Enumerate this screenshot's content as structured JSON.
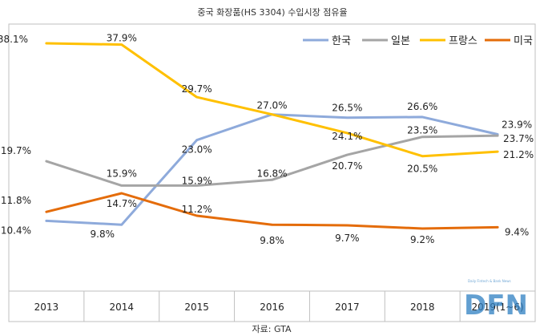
{
  "chart_data": {
    "type": "line",
    "title": "중국 화장품(HS 3304) 수입시장 점유율",
    "categories": [
      "2013",
      "2014",
      "2015",
      "2016",
      "2017",
      "2018",
      "2019(1~6)"
    ],
    "series": [
      {
        "name": "한국",
        "color": "#8eaadb",
        "values": [
          10.4,
          9.8,
          23.0,
          27.0,
          26.5,
          26.6,
          23.9
        ],
        "labels": [
          "10.4%",
          "9.8%",
          "23.0%",
          "27.0%",
          "26.5%",
          "26.6%",
          "23.9%"
        ]
      },
      {
        "name": "일본",
        "color": "#a5a5a5",
        "values": [
          19.7,
          15.9,
          15.9,
          16.8,
          20.7,
          23.5,
          23.7
        ],
        "labels": [
          "19.7%",
          "15.9%",
          "15.9%",
          "16.8%",
          "20.7%",
          "23.5%",
          "23.7%"
        ]
      },
      {
        "name": "프랑스",
        "color": "#ffc000",
        "values": [
          38.1,
          37.9,
          29.7,
          27.0,
          24.1,
          20.5,
          21.2
        ],
        "labels": [
          "38.1%",
          "37.9%",
          "29.7%",
          "",
          "24.1%",
          "20.5%",
          "21.2%"
        ]
      },
      {
        "name": "미국",
        "color": "#e46c0a",
        "values": [
          11.8,
          14.7,
          11.2,
          9.8,
          9.7,
          9.2,
          9.4
        ],
        "labels": [
          "11.8%",
          "14.7%",
          "11.2%",
          "9.8%",
          "9.7%",
          "9.2%",
          "9.4%"
        ]
      }
    ],
    "legend": "top-right",
    "grid": false,
    "source": "자료: GTA"
  },
  "watermark": {
    "text": "DFN",
    "subtext": "Daily Fintech & Bank News"
  }
}
